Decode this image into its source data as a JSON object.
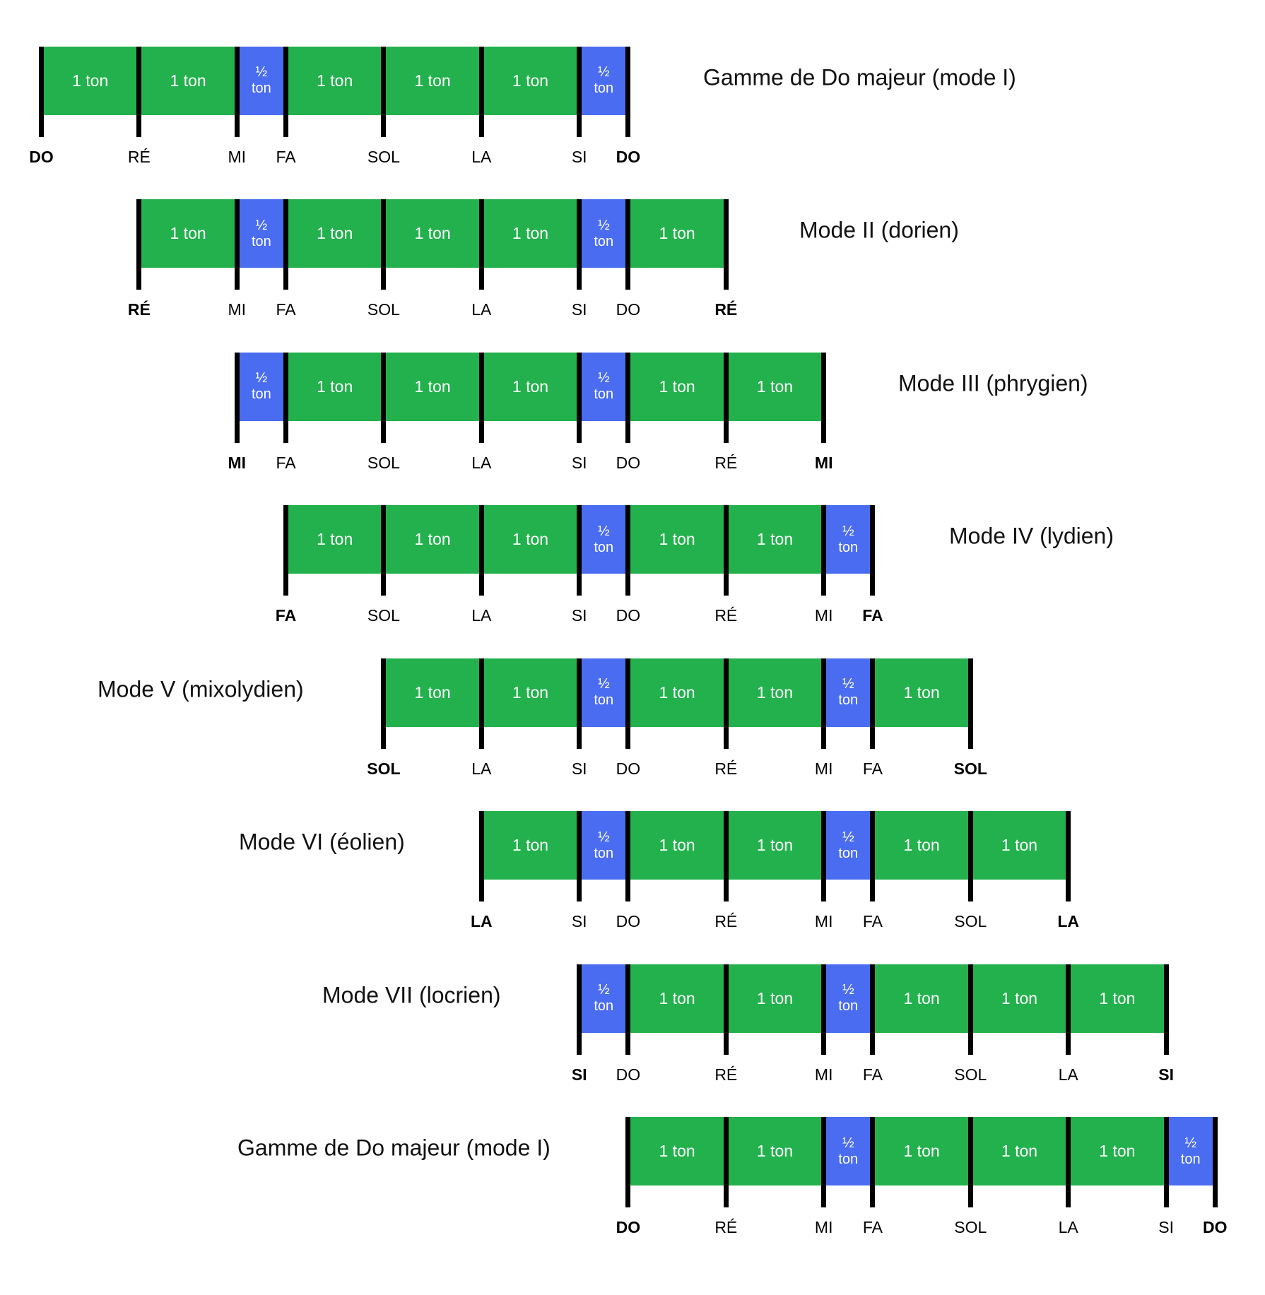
{
  "colors": {
    "whole_tone": "#22b14c",
    "half_tone": "#4a6cf0",
    "separator": "#000000"
  },
  "labels": {
    "whole": "1 ton",
    "half": "½ ton"
  },
  "rows": [
    {
      "title": "Gamme de Do majeur (mode I)",
      "notes": [
        "DO",
        "RÉ",
        "MI",
        "FA",
        "SOL",
        "LA",
        "SI",
        "DO"
      ],
      "steps": [
        "whole",
        "whole",
        "half",
        "whole",
        "whole",
        "whole",
        "half"
      ]
    },
    {
      "title": "Mode II (dorien)",
      "notes": [
        "RÉ",
        "MI",
        "FA",
        "SOL",
        "LA",
        "SI",
        "DO",
        "RÉ"
      ],
      "steps": [
        "whole",
        "half",
        "whole",
        "whole",
        "whole",
        "half",
        "whole"
      ]
    },
    {
      "title": "Mode III (phrygien)",
      "notes": [
        "MI",
        "FA",
        "SOL",
        "LA",
        "SI",
        "DO",
        "RÉ",
        "MI"
      ],
      "steps": [
        "half",
        "whole",
        "whole",
        "whole",
        "half",
        "whole",
        "whole"
      ]
    },
    {
      "title": "Mode IV (lydien)",
      "notes": [
        "FA",
        "SOL",
        "LA",
        "SI",
        "DO",
        "RÉ",
        "MI",
        "FA"
      ],
      "steps": [
        "whole",
        "whole",
        "whole",
        "half",
        "whole",
        "whole",
        "half"
      ]
    },
    {
      "title": "Mode V (mixolydien)",
      "notes": [
        "SOL",
        "LA",
        "SI",
        "DO",
        "RÉ",
        "MI",
        "FA",
        "SOL"
      ],
      "steps": [
        "whole",
        "whole",
        "half",
        "whole",
        "whole",
        "half",
        "whole"
      ]
    },
    {
      "title": "Mode VI (éolien)",
      "notes": [
        "LA",
        "SI",
        "DO",
        "RÉ",
        "MI",
        "FA",
        "SOL",
        "LA"
      ],
      "steps": [
        "whole",
        "half",
        "whole",
        "whole",
        "half",
        "whole",
        "whole"
      ]
    },
    {
      "title": "Mode VII (locrien)",
      "notes": [
        "SI",
        "DO",
        "RÉ",
        "MI",
        "FA",
        "SOL",
        "LA",
        "SI"
      ],
      "steps": [
        "half",
        "whole",
        "whole",
        "half",
        "whole",
        "whole",
        "whole"
      ]
    },
    {
      "title": "Gamme de Do majeur (mode I)",
      "notes": [
        "DO",
        "RÉ",
        "MI",
        "FA",
        "SOL",
        "LA",
        "SI",
        "DO"
      ],
      "steps": [
        "whole",
        "whole",
        "half",
        "whole",
        "whole",
        "whole",
        "half"
      ]
    }
  ]
}
